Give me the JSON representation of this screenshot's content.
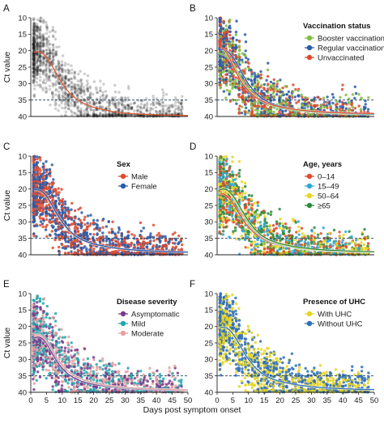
{
  "figure": {
    "shared_xlabel": "Days post symptom onset",
    "ylabel": "Ct value",
    "reference_line_ct": 35
  },
  "chart_data": [
    {
      "panel": "A",
      "type": "scatter",
      "xlabel": "",
      "ylabel": "Ct value",
      "xlim": [
        0,
        50
      ],
      "ylim": [
        40,
        10
      ],
      "y_inverted": true,
      "xticks": [],
      "yticks": [
        10,
        15,
        20,
        25,
        30,
        35,
        40
      ],
      "reference_line": 35,
      "legend_title": "",
      "series": [
        {
          "name": "",
          "color": "#1a1a1a",
          "curve": {
            "x": [
              1,
              2,
              3,
              4,
              5,
              6,
              7,
              8,
              9,
              10,
              11,
              12,
              13,
              14,
              15,
              16,
              17,
              18,
              19,
              20,
              22,
              24,
              26,
              28,
              30,
              35,
              40,
              45,
              50
            ],
            "y": [
              20.5,
              20.3,
              20.4,
              21,
              22,
              23.5,
              25,
              26.8,
              28.4,
              30,
              31.3,
              32.5,
              33.5,
              34.3,
              35,
              35.6,
              36.1,
              36.5,
              36.9,
              37.2,
              37.7,
              38.1,
              38.5,
              38.8,
              39,
              39.3,
              39.5,
              39.6,
              39.7
            ]
          }
        }
      ]
    },
    {
      "panel": "B",
      "type": "scatter",
      "xlabel": "",
      "ylabel": "",
      "xlim": [
        0,
        50
      ],
      "ylim": [
        40,
        10
      ],
      "y_inverted": true,
      "xticks": [],
      "yticks": [
        10,
        15,
        20,
        25,
        30,
        35,
        40
      ],
      "reference_line": 35,
      "legend_title": "Vaccination status",
      "series": [
        {
          "name": "Booster vaccination",
          "color": "#7fbf3f",
          "curve": {
            "x": [
              1,
              2,
              3,
              4,
              5,
              6,
              7,
              8,
              9,
              10,
              12,
              14,
              16,
              18,
              20,
              25,
              30,
              35,
              40,
              45,
              50
            ],
            "y": [
              21,
              21.2,
              21.8,
              22.8,
              24,
              25.6,
              27.3,
              29,
              30.5,
              31.8,
              33.8,
              35.2,
              36.1,
              36.8,
              37.3,
              38.2,
              38.7,
              39,
              39.2,
              39.3,
              39.4
            ]
          }
        },
        {
          "name": "Regular vaccination",
          "color": "#2a5ba8",
          "curve": {
            "x": [
              1,
              2,
              3,
              4,
              5,
              6,
              7,
              8,
              9,
              10,
              12,
              14,
              16,
              18,
              20,
              25,
              30,
              35,
              40,
              45,
              50
            ],
            "y": [
              19.8,
              19.7,
              20,
              20.8,
              22,
              23.5,
              25.2,
              27,
              28.6,
              30.2,
              32.6,
              34.3,
              35.5,
              36.3,
              36.9,
              37.9,
              38.5,
              38.8,
              39,
              39.2,
              39.3
            ]
          }
        },
        {
          "name": "Unvaccinated",
          "color": "#e04a2c",
          "curve": {
            "x": [
              1,
              2,
              3,
              4,
              5,
              6,
              7,
              8,
              9,
              10,
              12,
              14,
              16,
              18,
              20,
              25,
              30,
              35,
              40,
              45,
              50
            ],
            "y": [
              19,
              19.5,
              20.5,
              22.3,
              24.5,
              26.5,
              28.3,
              29.9,
              31.2,
              32.3,
              34,
              35.2,
              36,
              36.6,
              37.1,
              37.9,
              38.4,
              38.7,
              38.9,
              39,
              39.1
            ]
          }
        }
      ]
    },
    {
      "panel": "C",
      "type": "scatter",
      "xlabel": "",
      "ylabel": "Ct value",
      "xlim": [
        0,
        50
      ],
      "ylim": [
        40,
        10
      ],
      "y_inverted": true,
      "xticks": [],
      "yticks": [
        10,
        15,
        20,
        25,
        30,
        35,
        40
      ],
      "reference_line": 35,
      "legend_title": "Sex",
      "series": [
        {
          "name": "Male",
          "color": "#e04a2c",
          "curve": {
            "x": [
              1,
              2,
              3,
              4,
              5,
              6,
              7,
              8,
              9,
              10,
              12,
              14,
              16,
              18,
              20,
              25,
              30,
              35,
              40,
              45,
              50
            ],
            "y": [
              20.6,
              20.5,
              20.7,
              21.4,
              22.5,
              24,
              25.6,
              27.3,
              28.9,
              30.3,
              32.7,
              34.3,
              35.4,
              36.2,
              36.8,
              37.8,
              38.4,
              38.7,
              38.9,
              39.1,
              39.2
            ]
          }
        },
        {
          "name": "Female",
          "color": "#2a5ba8",
          "curve": {
            "x": [
              1,
              2,
              3,
              4,
              5,
              6,
              7,
              8,
              9,
              10,
              12,
              14,
              16,
              18,
              20,
              25,
              30,
              35,
              40,
              45,
              50
            ],
            "y": [
              20.3,
              20.2,
              20.4,
              21,
              22.1,
              23.6,
              25.3,
              27,
              28.6,
              30,
              32.4,
              34.1,
              35.3,
              36.1,
              36.7,
              37.7,
              38.3,
              38.7,
              38.9,
              39.1,
              39.2
            ]
          }
        }
      ]
    },
    {
      "panel": "D",
      "type": "scatter",
      "xlabel": "",
      "ylabel": "",
      "xlim": [
        0,
        50
      ],
      "ylim": [
        40,
        10
      ],
      "y_inverted": true,
      "xticks": [],
      "yticks": [
        10,
        15,
        20,
        25,
        30,
        35,
        40
      ],
      "reference_line": 35,
      "legend_title": "Age, years",
      "series": [
        {
          "name": "0–14",
          "color": "#e04a2c",
          "curve": {
            "x": [
              1,
              2,
              3,
              4,
              5,
              6,
              7,
              8,
              9,
              10,
              12,
              14,
              16,
              18,
              20,
              25,
              30,
              35,
              40,
              45,
              50
            ],
            "y": [
              21.5,
              21.5,
              22,
              23,
              24.3,
              25.8,
              27.4,
              29,
              30.4,
              31.6,
              33.5,
              34.9,
              35.9,
              36.6,
              37.1,
              38,
              38.5,
              38.8,
              39,
              39.1,
              39.2
            ]
          }
        },
        {
          "name": "15–49",
          "color": "#2aa8dc",
          "curve": {
            "x": [
              1,
              2,
              3,
              4,
              5,
              6,
              7,
              8,
              9,
              10,
              12,
              14,
              16,
              18,
              20,
              25,
              30,
              35,
              40,
              45,
              50
            ],
            "y": [
              20.3,
              20.2,
              20.5,
              21.3,
              22.5,
              24.1,
              25.8,
              27.6,
              29.2,
              30.6,
              32.9,
              34.5,
              35.6,
              36.4,
              37,
              38,
              38.5,
              38.8,
              39,
              39.1,
              39.2
            ]
          }
        },
        {
          "name": "50–64",
          "color": "#e8d51e",
          "curve": {
            "x": [
              1,
              2,
              3,
              4,
              5,
              6,
              7,
              8,
              9,
              10,
              12,
              14,
              16,
              18,
              20,
              25,
              30,
              35,
              40,
              45,
              50
            ],
            "y": [
              20.6,
              20.4,
              20.6,
              21.3,
              22.4,
              23.9,
              25.5,
              27.2,
              28.8,
              30.2,
              32.6,
              34.2,
              35.4,
              36.2,
              36.8,
              37.8,
              38.4,
              38.7,
              38.9,
              39.1,
              39.2
            ]
          }
        },
        {
          "name": "≥65",
          "color": "#2e8a3e",
          "curve": {
            "x": [
              1,
              2,
              3,
              4,
              5,
              6,
              7,
              8,
              9,
              10,
              12,
              14,
              16,
              18,
              20,
              25,
              30,
              35,
              40,
              45,
              50
            ],
            "y": [
              20.2,
              20,
              20.2,
              20.9,
              22,
              23.4,
              25,
              26.7,
              28.3,
              29.8,
              32.2,
              34,
              35.2,
              36,
              36.6,
              37.6,
              38.2,
              38.6,
              38.8,
              39,
              39.1
            ]
          }
        }
      ]
    },
    {
      "panel": "E",
      "type": "scatter",
      "xlabel": "Days post symptom onset",
      "ylabel": "Ct value",
      "xlim": [
        0,
        50
      ],
      "ylim": [
        40,
        10
      ],
      "y_inverted": true,
      "xticks": [
        0,
        5,
        10,
        15,
        20,
        25,
        30,
        35,
        40,
        45,
        50
      ],
      "yticks": [
        10,
        15,
        20,
        25,
        30,
        35,
        40
      ],
      "reference_line": 35,
      "legend_title": "Disease severity",
      "series": [
        {
          "name": "Asymptomatic",
          "color": "#7a3a8c",
          "curve": {
            "x": [
              1,
              2,
              3,
              4,
              5,
              6,
              7,
              8,
              9,
              10,
              12,
              14,
              16,
              18,
              20,
              25,
              30,
              35,
              40,
              45,
              50
            ],
            "y": [
              23.5,
              23.2,
              23.3,
              24,
              25.2,
              26.8,
              28.5,
              30.1,
              31.6,
              32.8,
              34.6,
              35.8,
              36.6,
              37.2,
              37.6,
              38.4,
              38.8,
              39.1,
              39.3,
              39.4,
              39.5
            ]
          }
        },
        {
          "name": "Mild",
          "color": "#22a8ae",
          "curve": {
            "x": [
              1,
              2,
              3,
              4,
              5,
              6,
              7,
              8,
              9,
              10,
              12,
              14,
              16,
              18,
              20,
              25,
              30,
              35,
              40,
              45,
              50
            ],
            "y": [
              22,
              21.8,
              22,
              22.8,
              24,
              25.5,
              27.2,
              28.9,
              30.4,
              31.7,
              33.7,
              35,
              36,
              36.7,
              37.2,
              38.1,
              38.6,
              38.9,
              39.1,
              39.2,
              39.3
            ]
          }
        },
        {
          "name": "Moderate",
          "color": "#e8a0a0",
          "curve": {
            "x": [
              1,
              2,
              3,
              4,
              5,
              6,
              7,
              8,
              9,
              10,
              12,
              14,
              16,
              18,
              20,
              25,
              30,
              35,
              40,
              45,
              50
            ],
            "y": [
              23,
              22.5,
              22.6,
              23.3,
              24.5,
              26,
              27.6,
              29.2,
              30.6,
              31.8,
              33.7,
              35,
              35.9,
              36.6,
              37.1,
              38,
              38.5,
              38.8,
              39,
              39.2,
              39.3
            ]
          }
        }
      ]
    },
    {
      "panel": "F",
      "type": "scatter",
      "xlabel": "Days post symptom onset",
      "ylabel": "",
      "xlim": [
        0,
        50
      ],
      "ylim": [
        40,
        10
      ],
      "y_inverted": true,
      "xticks": [
        0,
        5,
        10,
        15,
        20,
        25,
        30,
        35,
        40,
        45,
        50
      ],
      "yticks": [
        10,
        15,
        20,
        25,
        30,
        35,
        40
      ],
      "reference_line": 35,
      "legend_title": "Presence of UHC",
      "series": [
        {
          "name": "With UHC",
          "color": "#e8d51e",
          "curve": {
            "x": [
              1,
              2,
              3,
              4,
              5,
              6,
              7,
              8,
              9,
              10,
              12,
              14,
              16,
              18,
              20,
              25,
              30,
              35,
              40,
              45,
              50
            ],
            "y": [
              20.4,
              20.3,
              20.5,
              21.2,
              22.3,
              23.8,
              25.4,
              27.1,
              28.7,
              30.1,
              32.5,
              34.2,
              35.4,
              36.2,
              36.8,
              37.8,
              38.4,
              38.7,
              38.9,
              39.1,
              39.2
            ]
          }
        },
        {
          "name": "Without UHC",
          "color": "#2f6fb8",
          "curve": {
            "x": [
              1,
              2,
              3,
              4,
              5,
              6,
              7,
              8,
              9,
              10,
              12,
              14,
              16,
              18,
              20,
              25,
              30,
              35,
              40,
              45,
              50
            ],
            "y": [
              20.3,
              20.2,
              20.4,
              21.1,
              22.2,
              23.7,
              25.3,
              27,
              28.6,
              30,
              32.4,
              34.1,
              35.3,
              36.1,
              36.7,
              37.7,
              38.3,
              38.7,
              38.9,
              39.1,
              39.2
            ]
          }
        }
      ]
    }
  ]
}
